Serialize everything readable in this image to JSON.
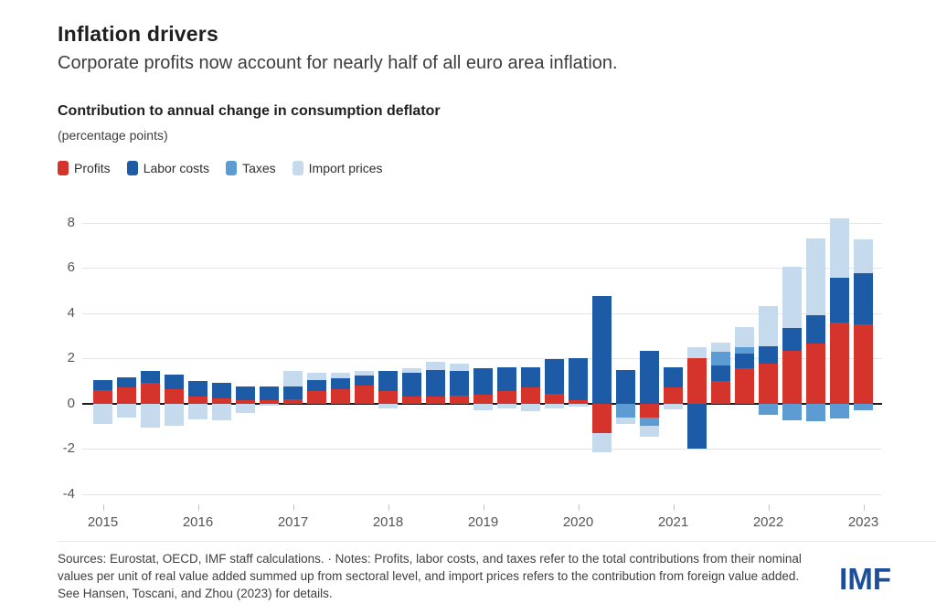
{
  "header": {
    "title": "Inflation drivers",
    "subtitle": "Corporate profits now account for nearly half of all euro area inflation."
  },
  "chart": {
    "title": "Contribution to annual change in consumption deflator",
    "unit_label": "(percentage points)"
  },
  "legend": [
    {
      "label": "Profits",
      "color": "#d5342c"
    },
    {
      "label": "Labor costs",
      "color": "#1e5ba6"
    },
    {
      "label": "Taxes",
      "color": "#5d9bd3"
    },
    {
      "label": "Import prices",
      "color": "#c6daee"
    }
  ],
  "chart_data": {
    "type": "bar",
    "stacked": true,
    "title": "Contribution to annual change in consumption deflator",
    "ylabel": "percentage points",
    "ylim": [
      -4,
      8
    ],
    "ytick_values": [
      8,
      6,
      4,
      2,
      0,
      -2,
      -4
    ],
    "ytick_labels": [
      "8",
      "6",
      "4",
      "2",
      "0",
      "-2",
      "-4"
    ],
    "zero_line": true,
    "grid": true,
    "legend_position": "top",
    "x": [
      "2015Q1",
      "2015Q2",
      "2015Q3",
      "2015Q4",
      "2016Q1",
      "2016Q2",
      "2016Q3",
      "2016Q4",
      "2017Q1",
      "2017Q2",
      "2017Q3",
      "2017Q4",
      "2018Q1",
      "2018Q2",
      "2018Q3",
      "2018Q4",
      "2019Q1",
      "2019Q2",
      "2019Q3",
      "2019Q4",
      "2020Q1",
      "2020Q2",
      "2020Q3",
      "2020Q4",
      "2021Q1",
      "2021Q2",
      "2021Q3",
      "2021Q4",
      "2022Q1",
      "2022Q2",
      "2022Q3",
      "2022Q4",
      "2023Q1"
    ],
    "xtick_year_labels": [
      "2015",
      "2016",
      "2017",
      "2018",
      "2019",
      "2020",
      "2021",
      "2022",
      "2023"
    ],
    "series": [
      {
        "name": "Profits",
        "color": "#d5342c",
        "values": [
          0.6,
          0.7,
          0.9,
          0.65,
          0.3,
          0.25,
          0.15,
          0.15,
          0.2,
          0.55,
          0.65,
          0.8,
          0.55,
          0.3,
          0.3,
          0.35,
          0.4,
          0.55,
          0.7,
          0.45,
          0.15,
          -1.3,
          0,
          -0.6,
          0.7,
          2.0,
          1.0,
          1.55,
          1.75,
          2.35,
          2.65,
          3.6,
          3.5
        ]
      },
      {
        "name": "Labor costs",
        "color": "#1e5ba6",
        "values": [
          0.45,
          0.45,
          0.55,
          0.65,
          0.7,
          0.65,
          0.6,
          0.6,
          0.55,
          0.5,
          0.45,
          0.45,
          0.9,
          1.05,
          1.2,
          1.1,
          1.15,
          1.05,
          0.9,
          1.5,
          1.85,
          4.75,
          1.5,
          2.35,
          0.9,
          -2.0,
          0.7,
          0.65,
          0.8,
          1.0,
          1.25,
          1.95,
          2.25
        ]
      },
      {
        "name": "Taxes",
        "color": "#5d9bd3",
        "values": [
          0,
          0,
          0,
          0,
          0,
          0,
          0,
          0,
          0,
          0,
          0,
          0,
          0,
          0,
          0,
          0,
          0,
          0,
          0,
          0,
          0,
          0,
          -0.6,
          -0.4,
          0,
          0,
          0.6,
          0.3,
          -0.5,
          -0.75,
          -0.8,
          -0.65,
          -0.3
        ]
      },
      {
        "name": "Import prices",
        "color": "#c6daee",
        "values": [
          -0.9,
          -0.6,
          -1.05,
          -1.0,
          -0.7,
          -0.75,
          -0.4,
          -0.1,
          0.7,
          0.3,
          0.25,
          0.2,
          -0.2,
          0.2,
          0.35,
          0.3,
          -0.3,
          -0.2,
          -0.35,
          -0.2,
          -0.15,
          -0.85,
          -0.3,
          -0.45,
          -0.25,
          0.5,
          0.4,
          0.9,
          1.75,
          2.7,
          3.4,
          2.65,
          1.5
        ]
      }
    ]
  },
  "footer": {
    "text": "Sources: Eurostat, OECD, IMF staff calculations. · Notes: Profits, labor costs, and taxes refer to the total contributions from their nominal values per unit of real value added summed up from sectoral level, and import prices refers to the contribution from foreign value added. See Hansen, Toscani, and Zhou (2023) for details.",
    "logo": "IMF"
  }
}
